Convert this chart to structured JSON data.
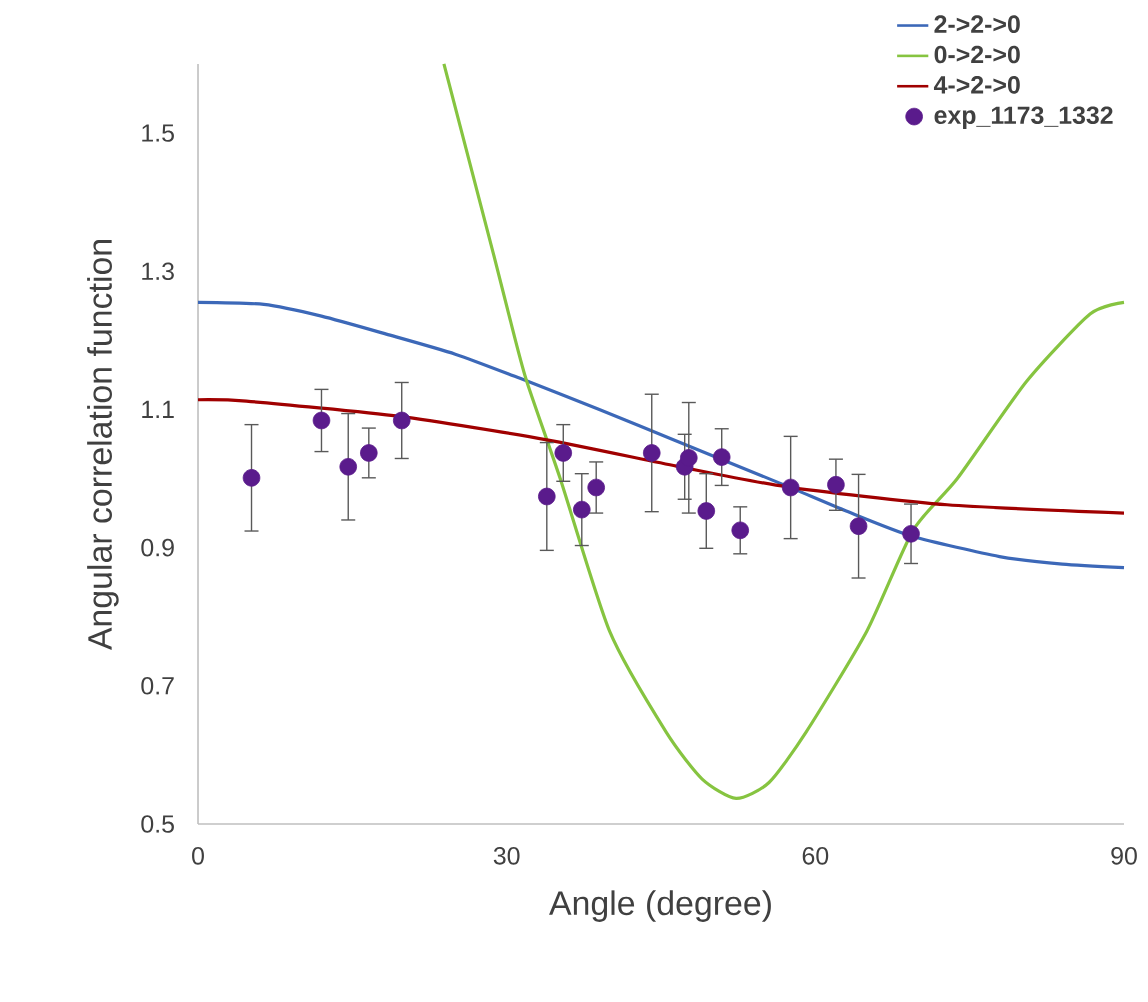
{
  "chart_data": {
    "type": "line",
    "xlabel": "Angle (degree)",
    "ylabel": "Angular correlation function",
    "xlim": [
      0,
      90
    ],
    "ylim": [
      0.5,
      1.6
    ],
    "xticks": [
      0,
      30,
      60,
      90
    ],
    "yticks": [
      0.5,
      0.7,
      0.9,
      1.1,
      1.3,
      1.5
    ],
    "legend": "top right",
    "series": [
      {
        "name": "2->2->0",
        "color": "#3c68b8",
        "x": [
          0,
          6.4,
          12,
          18.3,
          25,
          31.3,
          39,
          46.2,
          56.6,
          63,
          69.5,
          77.9,
          84,
          90
        ],
        "values": [
          1.255,
          1.252,
          1.235,
          1.209,
          1.18,
          1.145,
          1.1,
          1.056,
          0.993,
          0.953,
          0.916,
          0.887,
          0.876,
          0.871
        ]
      },
      {
        "name": "0->2->0",
        "color": "#86c440",
        "x": [
          23.9,
          28.7,
          30.2,
          31.9,
          35.2,
          40.0,
          45.5,
          49,
          52.3,
          55.5,
          59.1,
          65.0,
          69.5,
          73.8,
          80.5,
          86.7,
          90
        ],
        "values": [
          1.6,
          1.326,
          1.238,
          1.143,
          1.0,
          0.779,
          0.633,
          0.565,
          0.537,
          0.56,
          0.633,
          0.779,
          0.925,
          1.0,
          1.14,
          1.238,
          1.255
        ]
      },
      {
        "name": "4->2->0",
        "color": "#a00000",
        "x": [
          0,
          4.7,
          19.6,
          33.9,
          46.5,
          57.2,
          72.8,
          90
        ],
        "values": [
          1.114,
          1.112,
          1.09,
          1.056,
          1.018,
          0.988,
          0.962,
          0.95
        ]
      },
      {
        "name": "exp_1173_1332",
        "type": "scatter",
        "marker": "circle",
        "color": "#5a1b8c",
        "x": [
          5.2,
          12.0,
          14.6,
          16.6,
          19.8,
          33.9,
          35.5,
          37.3,
          38.7,
          44.1,
          47.3,
          47.7,
          49.4,
          50.9,
          52.7,
          57.6,
          62.0,
          64.2,
          69.3
        ],
        "values": [
          1.001,
          1.084,
          1.017,
          1.037,
          1.084,
          0.974,
          1.037,
          0.955,
          0.987,
          1.037,
          1.017,
          1.03,
          0.953,
          1.031,
          0.925,
          0.987,
          0.991,
          0.931,
          0.92
        ],
        "errors": [
          0.077,
          0.045,
          0.077,
          0.036,
          0.055,
          0.078,
          0.041,
          0.052,
          0.037,
          0.085,
          0.047,
          0.08,
          0.054,
          0.041,
          0.034,
          0.074,
          0.037,
          0.075,
          0.043
        ]
      }
    ]
  }
}
